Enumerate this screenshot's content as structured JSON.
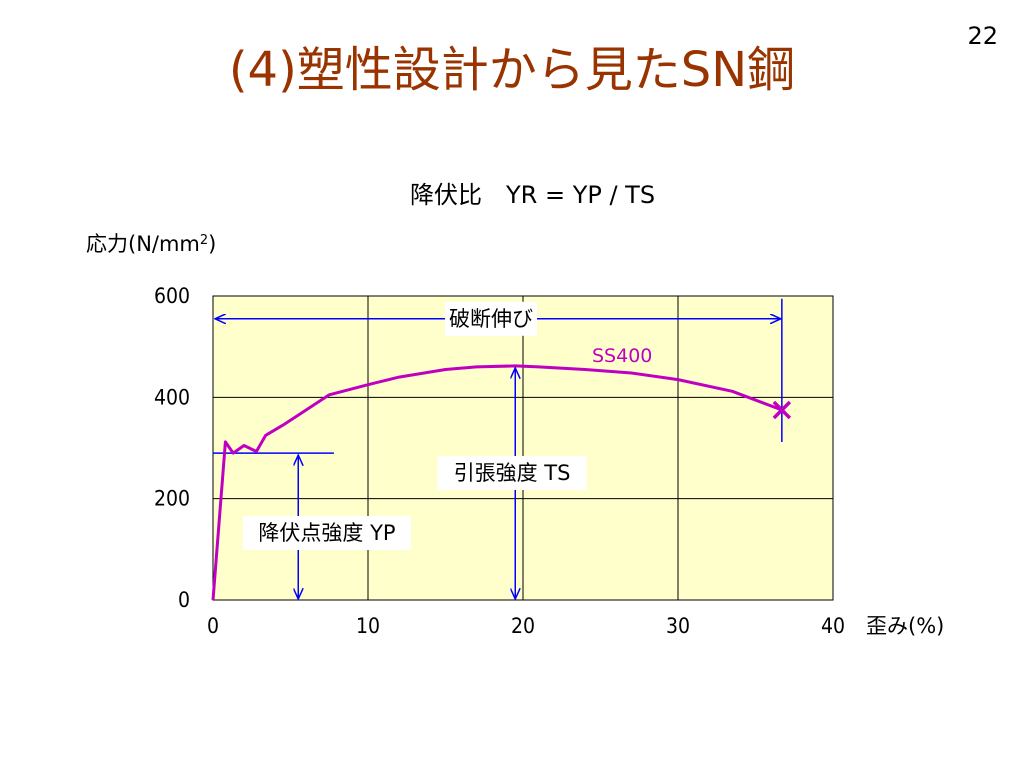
{
  "slide": {
    "number": "22",
    "title": "(4)塑性設計から見たSN鋼",
    "formula": "降伏比　YR = YP / TS"
  },
  "chart_data": {
    "type": "line",
    "ylabel": "応力(N/mm",
    "ylabel_sup": "2",
    "ylabel_close": ")",
    "xlabel": "歪み(%)",
    "xlim": [
      0,
      40
    ],
    "ylim": [
      0,
      600
    ],
    "xticks": [
      0,
      10,
      20,
      30,
      40
    ],
    "yticks": [
      0,
      200,
      400,
      600
    ],
    "grid": true,
    "background": "#ffffcc",
    "series": [
      {
        "name": "SS400",
        "color": "#c000c0",
        "x": [
          0,
          0.8,
          1.3,
          2.0,
          2.8,
          3.4,
          4.5,
          5.5,
          7.5,
          10.0,
          12.0,
          15.0,
          17.0,
          19.5,
          21.0,
          24.0,
          27.0,
          30.0,
          33.5,
          36.7
        ],
        "y": [
          0,
          312,
          290,
          305,
          293,
          325,
          345,
          365,
          405,
          425,
          440,
          455,
          460,
          462,
          460,
          455,
          448,
          435,
          412,
          375
        ]
      }
    ],
    "break_point": {
      "x": 36.7,
      "y": 375
    },
    "annotations": [
      {
        "label": "破断伸び",
        "kind": "horizontal-arrow",
        "x_from": 0,
        "x_to": 36.7,
        "y": 555
      },
      {
        "label": "引張強度 TS",
        "kind": "vertical-arrow",
        "x": 19.5,
        "y_from": 0,
        "y_to": 462
      },
      {
        "label": "降伏点強度 YP",
        "kind": "vertical-arrow",
        "x": 5.5,
        "y_from": 0,
        "y_to": 290,
        "ref_line": {
          "x_from": 0,
          "x_to": 7.8,
          "y": 290
        }
      }
    ]
  }
}
